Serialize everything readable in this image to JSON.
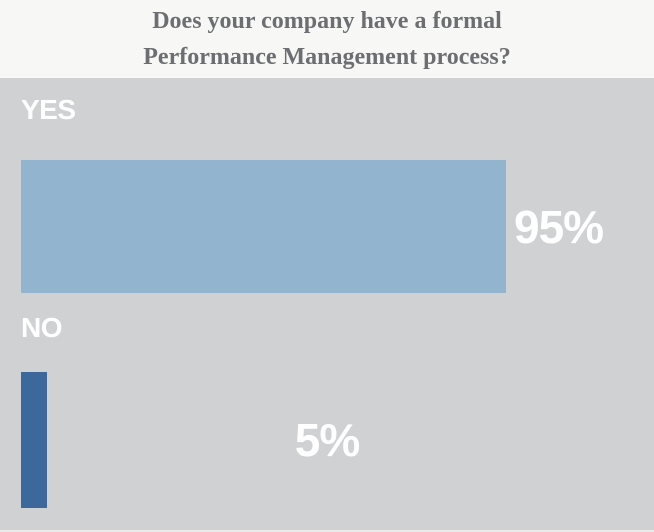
{
  "chart_title": {
    "lines": [
      "Does your company have a formal",
      "Performance Management process?"
    ]
  },
  "chart_data": {
    "type": "bar",
    "orientation": "horizontal",
    "title": "Does your company have a formal Performance Management process?",
    "categories": [
      "YES",
      "NO"
    ],
    "values": [
      95,
      5
    ],
    "value_labels": [
      "95%",
      "5%"
    ],
    "xlim": [
      0,
      100
    ],
    "grid": false,
    "legend": false,
    "bar_colors": [
      "#92b4ce",
      "#3c689b"
    ],
    "plot_background": "#d0d1d3",
    "title_background": "#f7f7f6",
    "title_text_color": "#6d6e71",
    "value_label_color": "#ffffff"
  }
}
